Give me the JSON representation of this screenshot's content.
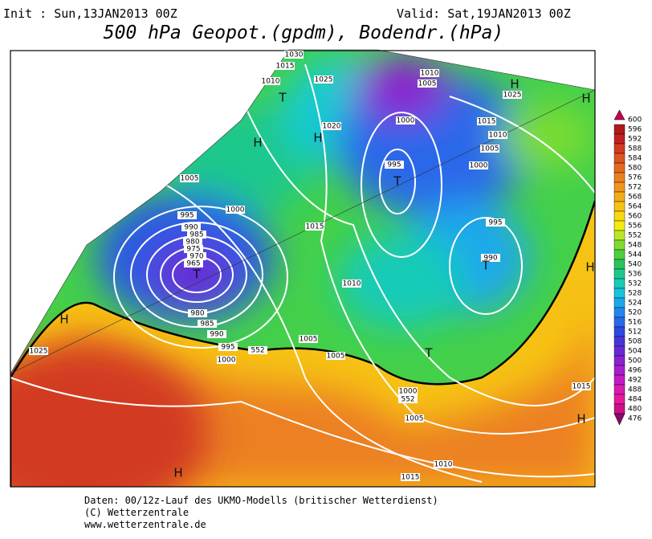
{
  "header": {
    "init": "Init : Sun,13JAN2013 00Z",
    "valid": "Valid: Sat,19JAN2013 00Z",
    "title": "500 hPa Geopot.(gpdm), Bodendr.(hPa)"
  },
  "colorbar": {
    "levels": [
      600,
      596,
      592,
      588,
      584,
      580,
      576,
      572,
      568,
      564,
      560,
      556,
      552,
      548,
      544,
      540,
      536,
      532,
      528,
      524,
      520,
      516,
      512,
      508,
      504,
      500,
      496,
      492,
      488,
      484,
      480,
      476
    ],
    "colors": [
      "#c8004a",
      "#b01a1a",
      "#c32020",
      "#d23a22",
      "#dd5522",
      "#e56a1e",
      "#ec8020",
      "#f0951e",
      "#f3ab18",
      "#f6c214",
      "#f8d912",
      "#f2ec10",
      "#b8e828",
      "#7cdc30",
      "#4cd03c",
      "#2cc45a",
      "#1ec88c",
      "#18cbb8",
      "#14c4dc",
      "#1aa8ec",
      "#2088ee",
      "#2a68ea",
      "#3048e0",
      "#4a34d8",
      "#6a28d4",
      "#8a22d0",
      "#a81ecc",
      "#c41ac4",
      "#d81ab0",
      "#e8189c",
      "#cc1088",
      "#8a0868"
    ]
  },
  "map": {
    "isobar_labels": [
      "1030",
      "1015",
      "1010",
      "1025",
      "1010",
      "1005",
      "1025",
      "1020",
      "1000",
      "1015",
      "1010",
      "1005",
      "1000",
      "995",
      "1005",
      "1000",
      "995",
      "990",
      "985",
      "980",
      "975",
      "970",
      "965",
      "1015",
      "995",
      "990",
      "1010",
      "980",
      "985",
      "990",
      "995",
      "1000",
      "1005",
      "1005",
      "1025",
      "552",
      "1000",
      "552",
      "1005",
      "1010",
      "1015",
      "1015"
    ],
    "centers": [
      "T",
      "T",
      "T",
      "T",
      "T",
      "H",
      "H",
      "H",
      "H",
      "H",
      "H",
      "H",
      "H"
    ]
  },
  "footer": {
    "lines": [
      "Daten: 00/12z-Lauf des UKMO-Modells (britischer Wetterdienst)",
      "(C) Wetterzentrale",
      "www.wetterzentrale.de"
    ]
  }
}
